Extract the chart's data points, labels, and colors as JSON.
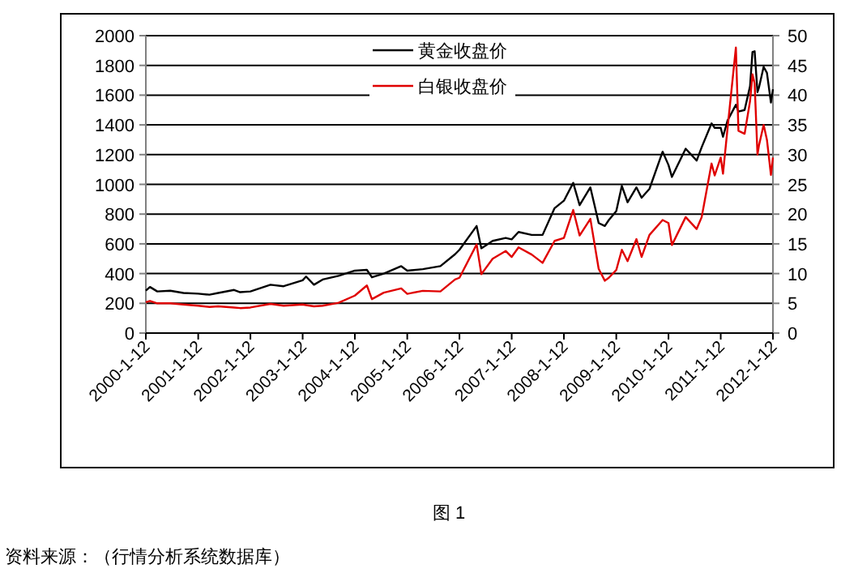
{
  "chart_data": {
    "type": "line",
    "x": [
      "2000-01-12",
      "2000-02-10",
      "2000-04-01",
      "2000-07-01",
      "2000-10-01",
      "2001-01-12",
      "2001-04-01",
      "2001-06-01",
      "2001-09-20",
      "2001-11-01",
      "2002-01-12",
      "2002-06-01",
      "2002-09-01",
      "2003-01-12",
      "2003-02-05",
      "2003-04-01",
      "2003-06-01",
      "2003-09-20",
      "2004-01-12",
      "2004-04-05",
      "2004-05-10",
      "2004-08-01",
      "2004-12-01",
      "2005-01-12",
      "2005-05-01",
      "2005-09-01",
      "2005-12-12",
      "2006-01-12",
      "2006-05-12",
      "2006-06-14",
      "2006-09-01",
      "2006-12-01",
      "2007-01-12",
      "2007-03-01",
      "2007-06-01",
      "2007-08-16",
      "2007-11-08",
      "2008-01-12",
      "2008-03-17",
      "2008-05-01",
      "2008-07-15",
      "2008-09-11",
      "2008-10-24",
      "2008-11-21",
      "2009-01-12",
      "2009-02-20",
      "2009-04-01",
      "2009-06-02",
      "2009-07-08",
      "2009-09-01",
      "2009-12-02",
      "2010-01-12",
      "2010-02-05",
      "2010-05-12",
      "2010-07-28",
      "2010-09-01",
      "2010-11-09",
      "2010-12-01",
      "2011-01-12",
      "2011-01-28",
      "2011-03-01",
      "2011-04-28",
      "2011-05-16",
      "2011-06-28",
      "2011-08-05",
      "2011-08-22",
      "2011-09-06",
      "2011-09-26",
      "2011-10-06",
      "2011-11-08",
      "2011-12-01",
      "2011-12-29",
      "2012-01-12"
    ],
    "series": [
      {
        "name": "黄金收盘价",
        "color": "#000000",
        "values": [
          285,
          310,
          280,
          285,
          270,
          265,
          258,
          270,
          290,
          275,
          280,
          325,
          315,
          355,
          380,
          325,
          360,
          385,
          420,
          425,
          375,
          400,
          450,
          420,
          430,
          450,
          530,
          560,
          720,
          570,
          620,
          640,
          630,
          680,
          660,
          660,
          840,
          890,
          1010,
          860,
          980,
          740,
          720,
          760,
          820,
          990,
          880,
          980,
          910,
          970,
          1220,
          1130,
          1050,
          1240,
          1160,
          1250,
          1410,
          1380,
          1380,
          1320,
          1430,
          1535,
          1490,
          1500,
          1660,
          1890,
          1895,
          1620,
          1650,
          1790,
          1750,
          1550,
          1640
        ]
      },
      {
        "name": "白银收盘价",
        "color": "#e00000",
        "axis": "y2",
        "values": [
          5.2,
          5.4,
          5.0,
          5.0,
          4.8,
          4.6,
          4.4,
          4.5,
          4.3,
          4.2,
          4.3,
          4.9,
          4.6,
          4.8,
          4.7,
          4.5,
          4.6,
          5.1,
          6.3,
          8.0,
          5.7,
          6.8,
          7.5,
          6.6,
          7.1,
          7.0,
          9.0,
          9.3,
          14.9,
          9.9,
          12.5,
          13.8,
          12.8,
          14.4,
          13.2,
          11.8,
          15.5,
          16.0,
          20.7,
          16.4,
          19.2,
          10.8,
          8.8,
          9.3,
          10.6,
          14.0,
          12.1,
          15.8,
          12.8,
          16.5,
          19.0,
          18.5,
          14.8,
          19.5,
          17.5,
          19.5,
          28.5,
          26.5,
          29.5,
          26.8,
          34.5,
          48.0,
          34.0,
          33.5,
          39.0,
          43.5,
          42.0,
          30.0,
          31.5,
          35.0,
          32.5,
          26.6,
          29.5
        ]
      }
    ],
    "xlim": [
      "2000-01-12",
      "2012-01-12"
    ],
    "xticks": [
      {
        "value": "2000-01-12",
        "label": "2000-1-12"
      },
      {
        "value": "2001-01-12",
        "label": "2001-1-12"
      },
      {
        "value": "2002-01-12",
        "label": "2002-1-12"
      },
      {
        "value": "2003-01-12",
        "label": "2003-1-12"
      },
      {
        "value": "2004-01-12",
        "label": "2004-1-12"
      },
      {
        "value": "2005-01-12",
        "label": "2005-1-12"
      },
      {
        "value": "2006-01-12",
        "label": "2006-1-12"
      },
      {
        "value": "2007-01-12",
        "label": "2007-1-12"
      },
      {
        "value": "2008-01-12",
        "label": "2008-1-12"
      },
      {
        "value": "2009-01-12",
        "label": "2009-1-12"
      },
      {
        "value": "2010-01-12",
        "label": "2010-1-12"
      },
      {
        "value": "2011-01-12",
        "label": "2011-1-12"
      },
      {
        "value": "2012-01-12",
        "label": "2012-1-12"
      }
    ],
    "ylim": [
      0,
      2000
    ],
    "yticks": [
      0,
      200,
      400,
      600,
      800,
      1000,
      1200,
      1400,
      1600,
      1800,
      2000
    ],
    "y2lim": [
      0,
      50
    ],
    "y2ticks": [
      0,
      5,
      10,
      15,
      20,
      25,
      30,
      35,
      40,
      45,
      50
    ],
    "grid": "y",
    "legend": "top",
    "line_style": "solid",
    "marker": "none",
    "annotations": [
      "图 1",
      "资料来源：（行情分析系统数据库）"
    ]
  }
}
